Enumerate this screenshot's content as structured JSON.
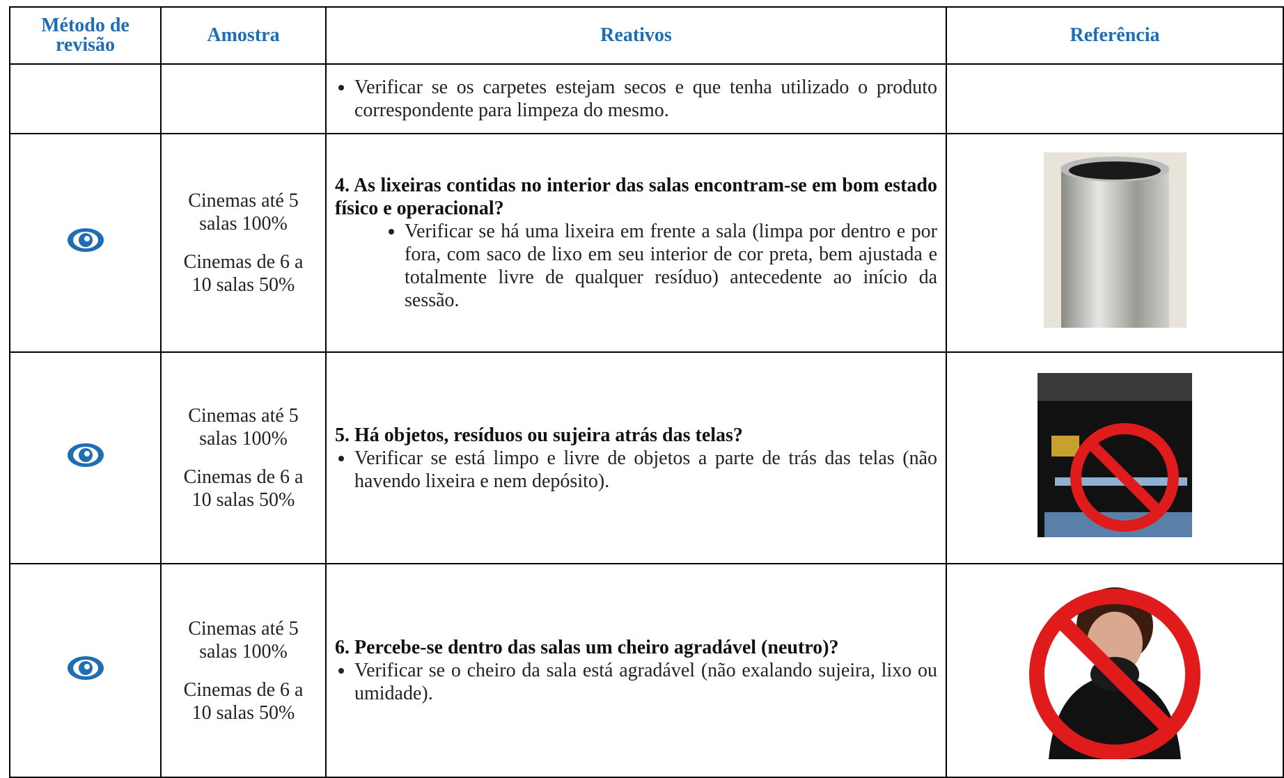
{
  "header": [
    "Método de revisão",
    "Amostra",
    "Reativos",
    "Referência"
  ],
  "rows": [
    {
      "bullets": [
        "Verificar se os carpetes estejam secos e que tenha utilizado o produto correspondente para limpeza do mesmo."
      ]
    },
    {
      "samples": [
        "Cinemas até 5 salas 100%",
        "Cinemas de 6 a 10 salas 50%"
      ],
      "question": "4. As lixeiras contidas no interior das salas encontram-se em bom estado físico e operacional?",
      "bullets": [
        "Verificar se há uma lixeira em frente a sala (limpa por dentro e por fora, com saco de lixo em seu interior de cor preta, bem ajustada e totalmente livre de qualquer resíduo) antecedente ao início da sessão."
      ]
    },
    {
      "samples": [
        "Cinemas até 5 salas 100%",
        "Cinemas de 6 a 10 salas 50%"
      ],
      "question": "5. Há objetos, resíduos ou sujeira atrás das telas?",
      "bullets": [
        "Verificar se está limpo e livre de objetos a parte de trás das telas (não havendo lixeira e nem depósito)."
      ]
    },
    {
      "samples": [
        "Cinemas até 5 salas 100%",
        "Cinemas de 6 a 10 salas 50%"
      ],
      "question": "6. Percebe-se dentro das salas um cheiro agradável (neutro)?",
      "bullets": [
        "Verificar se o cheiro da sala está agradável (não exalando sujeira, lixo ou umidade)."
      ]
    }
  ]
}
